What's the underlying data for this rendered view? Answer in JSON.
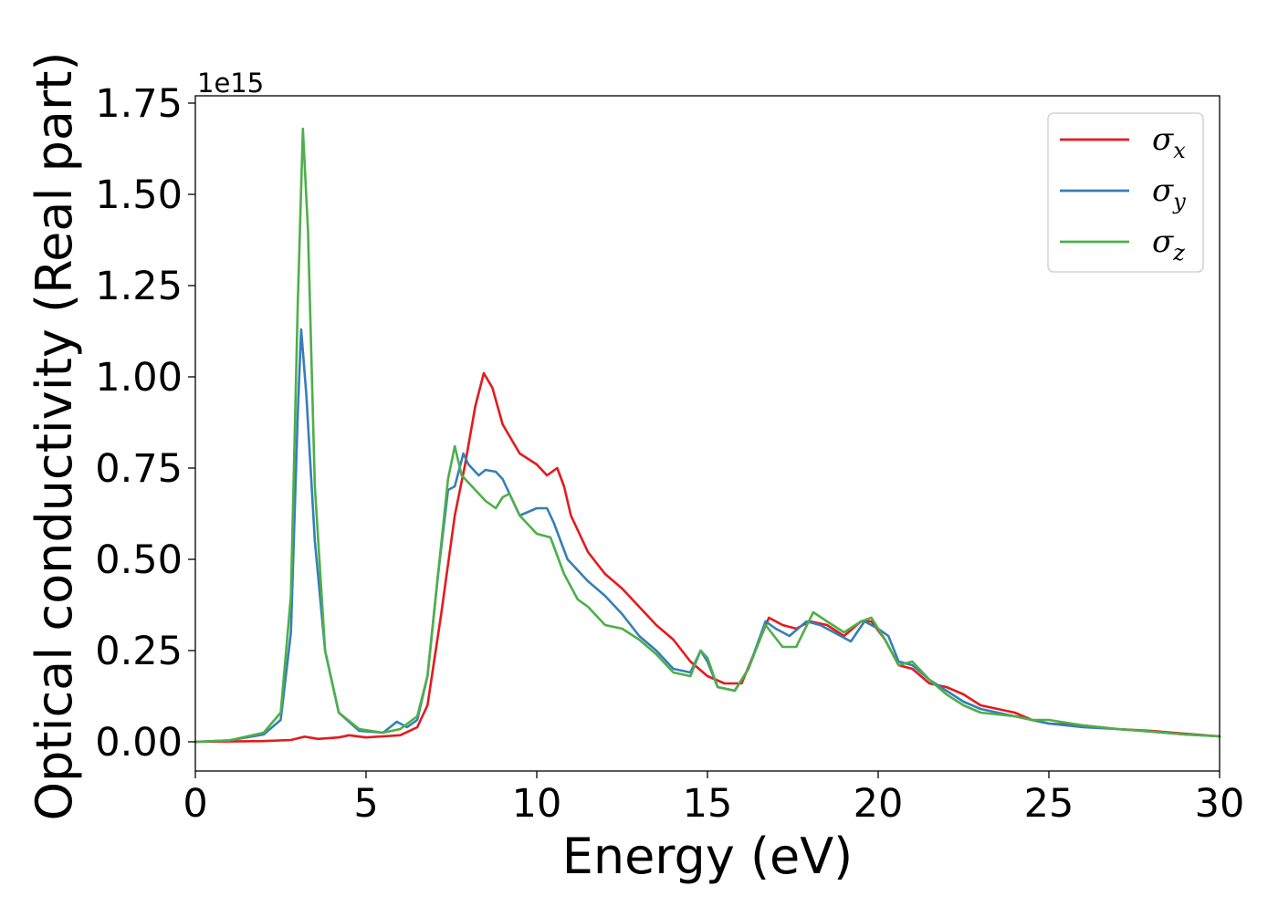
{
  "chart_data": {
    "type": "line",
    "xlabel": "Energy (eV)",
    "ylabel": "Optical conductivity (Real part)",
    "y_offset_label": "1e15",
    "xlim": [
      0,
      30
    ],
    "ylim": [
      -0.08,
      1.77
    ],
    "x_ticks": [
      0,
      5,
      10,
      15,
      20,
      25,
      30
    ],
    "x_tick_labels": [
      "0",
      "5",
      "10",
      "15",
      "20",
      "25",
      "30"
    ],
    "y_ticks": [
      0.0,
      0.25,
      0.5,
      0.75,
      1.0,
      1.25,
      1.5,
      1.75
    ],
    "y_tick_labels": [
      "0.00",
      "0.25",
      "0.50",
      "0.75",
      "1.00",
      "1.25",
      "1.50",
      "1.75"
    ],
    "grid": false,
    "legend_position": "top-right",
    "series": [
      {
        "name": "σx",
        "name_base": "σ",
        "name_sub": "x",
        "color": "#e41a1c",
        "points": [
          [
            0,
            0
          ],
          [
            1,
            0.001
          ],
          [
            2,
            0.002
          ],
          [
            2.8,
            0.005
          ],
          [
            3.2,
            0.014
          ],
          [
            3.6,
            0.008
          ],
          [
            4.2,
            0.012
          ],
          [
            4.5,
            0.018
          ],
          [
            5,
            0.012
          ],
          [
            5.5,
            0.015
          ],
          [
            6,
            0.018
          ],
          [
            6.5,
            0.04
          ],
          [
            6.8,
            0.1
          ],
          [
            7.2,
            0.35
          ],
          [
            7.6,
            0.62
          ],
          [
            7.9,
            0.76
          ],
          [
            8.2,
            0.92
          ],
          [
            8.45,
            1.01
          ],
          [
            8.7,
            0.97
          ],
          [
            9,
            0.87
          ],
          [
            9.5,
            0.79
          ],
          [
            10,
            0.76
          ],
          [
            10.3,
            0.73
          ],
          [
            10.6,
            0.75
          ],
          [
            10.8,
            0.7
          ],
          [
            11,
            0.62
          ],
          [
            11.5,
            0.52
          ],
          [
            12,
            0.46
          ],
          [
            12.5,
            0.42
          ],
          [
            13,
            0.37
          ],
          [
            13.5,
            0.32
          ],
          [
            14,
            0.28
          ],
          [
            14.5,
            0.22
          ],
          [
            15,
            0.18
          ],
          [
            15.5,
            0.16
          ],
          [
            16,
            0.16
          ],
          [
            16.4,
            0.25
          ],
          [
            16.8,
            0.34
          ],
          [
            17.2,
            0.32
          ],
          [
            17.6,
            0.31
          ],
          [
            18,
            0.33
          ],
          [
            18.5,
            0.32
          ],
          [
            19,
            0.29
          ],
          [
            19.5,
            0.33
          ],
          [
            19.8,
            0.33
          ],
          [
            20.2,
            0.28
          ],
          [
            20.6,
            0.21
          ],
          [
            21,
            0.2
          ],
          [
            21.5,
            0.16
          ],
          [
            22,
            0.15
          ],
          [
            22.5,
            0.13
          ],
          [
            23,
            0.1
          ],
          [
            23.5,
            0.09
          ],
          [
            24,
            0.08
          ],
          [
            24.5,
            0.06
          ],
          [
            25,
            0.05
          ],
          [
            26,
            0.045
          ],
          [
            27,
            0.035
          ],
          [
            28,
            0.03
          ],
          [
            29,
            0.022
          ],
          [
            30,
            0.015
          ]
        ]
      },
      {
        "name": "σy",
        "name_base": "σ",
        "name_sub": "y",
        "color": "#377eb8",
        "points": [
          [
            0,
            0
          ],
          [
            1,
            0.004
          ],
          [
            2,
            0.02
          ],
          [
            2.5,
            0.06
          ],
          [
            2.8,
            0.3
          ],
          [
            3.0,
            0.9
          ],
          [
            3.1,
            1.13
          ],
          [
            3.25,
            0.95
          ],
          [
            3.5,
            0.55
          ],
          [
            3.8,
            0.25
          ],
          [
            4.2,
            0.08
          ],
          [
            4.8,
            0.03
          ],
          [
            5.5,
            0.025
          ],
          [
            5.9,
            0.055
          ],
          [
            6.2,
            0.04
          ],
          [
            6.5,
            0.06
          ],
          [
            6.8,
            0.18
          ],
          [
            7.1,
            0.45
          ],
          [
            7.4,
            0.69
          ],
          [
            7.6,
            0.7
          ],
          [
            7.85,
            0.79
          ],
          [
            8,
            0.76
          ],
          [
            8.3,
            0.73
          ],
          [
            8.5,
            0.745
          ],
          [
            8.8,
            0.74
          ],
          [
            9,
            0.72
          ],
          [
            9.5,
            0.62
          ],
          [
            10,
            0.64
          ],
          [
            10.3,
            0.64
          ],
          [
            10.5,
            0.6
          ],
          [
            10.9,
            0.5
          ],
          [
            11.5,
            0.44
          ],
          [
            12,
            0.4
          ],
          [
            12.5,
            0.35
          ],
          [
            13,
            0.29
          ],
          [
            13.5,
            0.25
          ],
          [
            14,
            0.2
          ],
          [
            14.5,
            0.19
          ],
          [
            14.8,
            0.25
          ],
          [
            15,
            0.22
          ],
          [
            15.3,
            0.15
          ],
          [
            15.8,
            0.14
          ],
          [
            16.2,
            0.2
          ],
          [
            16.7,
            0.33
          ],
          [
            17,
            0.31
          ],
          [
            17.4,
            0.29
          ],
          [
            17.9,
            0.33
          ],
          [
            18.3,
            0.32
          ],
          [
            18.7,
            0.3
          ],
          [
            19.2,
            0.275
          ],
          [
            19.6,
            0.33
          ],
          [
            20,
            0.31
          ],
          [
            20.3,
            0.29
          ],
          [
            20.6,
            0.22
          ],
          [
            21,
            0.21
          ],
          [
            21.5,
            0.17
          ],
          [
            22,
            0.14
          ],
          [
            22.5,
            0.11
          ],
          [
            23,
            0.09
          ],
          [
            24,
            0.07
          ],
          [
            24.5,
            0.06
          ],
          [
            25,
            0.05
          ],
          [
            26,
            0.04
          ],
          [
            27,
            0.035
          ],
          [
            28,
            0.028
          ],
          [
            29,
            0.02
          ],
          [
            30,
            0.015
          ]
        ]
      },
      {
        "name": "σz",
        "name_base": "σ",
        "name_sub": "z",
        "color": "#4daf4a",
        "points": [
          [
            0,
            0
          ],
          [
            1,
            0.004
          ],
          [
            2,
            0.025
          ],
          [
            2.5,
            0.08
          ],
          [
            2.8,
            0.4
          ],
          [
            3.0,
            1.2
          ],
          [
            3.15,
            1.68
          ],
          [
            3.3,
            1.4
          ],
          [
            3.5,
            0.7
          ],
          [
            3.8,
            0.25
          ],
          [
            4.2,
            0.08
          ],
          [
            4.8,
            0.035
          ],
          [
            5.5,
            0.025
          ],
          [
            6,
            0.035
          ],
          [
            6.5,
            0.07
          ],
          [
            6.8,
            0.18
          ],
          [
            7.1,
            0.45
          ],
          [
            7.4,
            0.72
          ],
          [
            7.6,
            0.81
          ],
          [
            7.8,
            0.73
          ],
          [
            8.2,
            0.69
          ],
          [
            8.5,
            0.66
          ],
          [
            8.8,
            0.64
          ],
          [
            9,
            0.67
          ],
          [
            9.2,
            0.68
          ],
          [
            9.5,
            0.62
          ],
          [
            10,
            0.57
          ],
          [
            10.4,
            0.56
          ],
          [
            10.8,
            0.46
          ],
          [
            11.2,
            0.39
          ],
          [
            11.5,
            0.37
          ],
          [
            12,
            0.32
          ],
          [
            12.5,
            0.31
          ],
          [
            13,
            0.28
          ],
          [
            13.5,
            0.24
          ],
          [
            14,
            0.19
          ],
          [
            14.5,
            0.18
          ],
          [
            14.8,
            0.25
          ],
          [
            15,
            0.23
          ],
          [
            15.3,
            0.15
          ],
          [
            15.8,
            0.14
          ],
          [
            16.2,
            0.2
          ],
          [
            16.7,
            0.32
          ],
          [
            17.2,
            0.26
          ],
          [
            17.6,
            0.26
          ],
          [
            18.1,
            0.355
          ],
          [
            18.5,
            0.33
          ],
          [
            19,
            0.3
          ],
          [
            19.5,
            0.33
          ],
          [
            19.8,
            0.34
          ],
          [
            20.2,
            0.28
          ],
          [
            20.6,
            0.21
          ],
          [
            21,
            0.22
          ],
          [
            21.5,
            0.17
          ],
          [
            22,
            0.13
          ],
          [
            22.5,
            0.1
          ],
          [
            23,
            0.08
          ],
          [
            24,
            0.07
          ],
          [
            24.5,
            0.06
          ],
          [
            25,
            0.06
          ],
          [
            26,
            0.045
          ],
          [
            27,
            0.035
          ],
          [
            28,
            0.028
          ],
          [
            29,
            0.02
          ],
          [
            30,
            0.015
          ]
        ]
      }
    ]
  }
}
